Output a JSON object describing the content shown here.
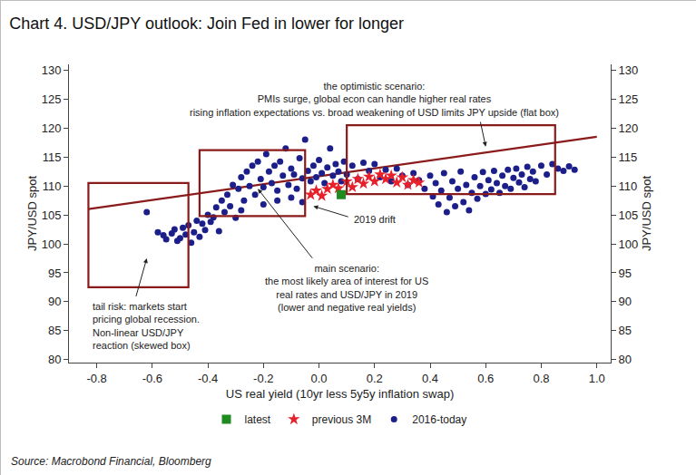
{
  "chart_data": {
    "type": "scatter",
    "title": "Chart 4. USD/JPY outlook: Join Fed in lower for longer",
    "x_label": "US real yield (10yr less 5y5y inflation swap)",
    "y_label": "JPY/USD spot",
    "y2_label": "JPY/USD spot",
    "xlim": [
      -0.9,
      1.05
    ],
    "xticks": [
      -0.8,
      -0.6,
      -0.4,
      -0.2,
      {
        "value": 0,
        "label": "0.0"
      },
      0.2,
      0.4,
      0.6,
      0.8,
      {
        "value": 1,
        "label": "1.0"
      }
    ],
    "ylim": [
      79.5,
      131
    ],
    "yticks": [
      80,
      85,
      90,
      95,
      100,
      105,
      110,
      115,
      120,
      125,
      130
    ],
    "y2lim": [
      79.5,
      131
    ],
    "y2ticks": [
      80,
      85,
      90,
      95,
      100,
      105,
      110,
      115,
      120,
      125,
      130
    ],
    "grid": false,
    "legend": "bottom",
    "series": [
      {
        "name": "2016-today",
        "color": "#1c1f8a",
        "marker": "circle",
        "x": [
          -0.62,
          -0.58,
          -0.56,
          -0.55,
          -0.53,
          -0.52,
          -0.51,
          -0.5,
          -0.49,
          -0.48,
          -0.47,
          -0.46,
          -0.45,
          -0.44,
          -0.43,
          -0.42,
          -0.41,
          -0.4,
          -0.39,
          -0.38,
          -0.37,
          -0.36,
          -0.35,
          -0.34,
          -0.33,
          -0.32,
          -0.31,
          -0.3,
          -0.29,
          -0.28,
          -0.27,
          -0.26,
          -0.25,
          -0.24,
          -0.23,
          -0.22,
          -0.21,
          -0.2,
          -0.19,
          -0.18,
          -0.17,
          -0.16,
          -0.15,
          -0.14,
          -0.13,
          -0.12,
          -0.11,
          -0.1,
          -0.09,
          -0.08,
          -0.07,
          -0.06,
          -0.05,
          -0.04,
          -0.03,
          -0.02,
          -0.01,
          0,
          0.01,
          0.02,
          0.03,
          0.04,
          0.05,
          0.06,
          0.07,
          0.08,
          0.09,
          0.1,
          0.12,
          0.14,
          0.16,
          0.18,
          0.2,
          0.22,
          0.24,
          0.26,
          0.28,
          0.3,
          0.32,
          0.34,
          0.36,
          0.38,
          0.4,
          0.41,
          0.42,
          0.43,
          0.44,
          0.45,
          0.46,
          0.47,
          0.48,
          0.49,
          0.5,
          0.51,
          0.52,
          0.53,
          0.54,
          0.55,
          0.56,
          0.57,
          0.58,
          0.59,
          0.6,
          0.61,
          0.62,
          0.63,
          0.64,
          0.65,
          0.66,
          0.67,
          0.68,
          0.69,
          0.7,
          0.71,
          0.72,
          0.73,
          0.74,
          0.75,
          0.76,
          0.77,
          0.78,
          0.8,
          0.82,
          0.84,
          0.86,
          0.88,
          0.9,
          0.92,
          -0.28,
          -0.2,
          -0.15,
          -0.1,
          -0.06
        ],
        "values": [
          105.5,
          102,
          101.5,
          100.8,
          101.8,
          102.5,
          100.5,
          101,
          102.8,
          101.6,
          103.2,
          100.2,
          102,
          104,
          101.2,
          103.5,
          102.4,
          105,
          103.8,
          104.6,
          106.3,
          102.2,
          107.5,
          105.5,
          108.5,
          106.5,
          110.2,
          104.5,
          109.5,
          111.5,
          107.5,
          112.5,
          110,
          113.5,
          108.5,
          114.2,
          111.2,
          109.8,
          115.5,
          112.5,
          110.5,
          113.5,
          109.2,
          114.2,
          111.8,
          116.5,
          110.2,
          113,
          112,
          109.5,
          114.8,
          111.3,
          118,
          112.6,
          110.8,
          113.5,
          111.5,
          114.5,
          112.2,
          110.5,
          113.2,
          116.5,
          111.8,
          113.8,
          112.5,
          110.8,
          114.2,
          112,
          113.5,
          111.2,
          114,
          112.6,
          113.8,
          111.5,
          112.8,
          110.8,
          113,
          111.8,
          110.2,
          112.2,
          111,
          109.5,
          111.8,
          108.2,
          110.5,
          106.8,
          109.2,
          112.2,
          105.5,
          108,
          110.8,
          106.5,
          109.5,
          112.5,
          107.2,
          110.2,
          105.8,
          108.8,
          111.5,
          107.8,
          110,
          112.4,
          108.6,
          111,
          109.4,
          112.6,
          110.5,
          108.8,
          111.8,
          110,
          112.8,
          109.5,
          111.4,
          113,
          110.6,
          112,
          109.8,
          113.3,
          111.2,
          112.5,
          110.8,
          113.5,
          112,
          113.8,
          113,
          112.6,
          113.4,
          112.8,
          105.8,
          106.8,
          107.5,
          108,
          107.2
        ]
      },
      {
        "name": "previous 3M",
        "color": "#e8202a",
        "marker": "star",
        "x": [
          -0.03,
          -0.01,
          0.01,
          0.03,
          0.05,
          0.07,
          0.1,
          0.12,
          0.14,
          0.16,
          0.18,
          0.2,
          0.22,
          0.24,
          0.26,
          0.28,
          0.3,
          0.32,
          0.34,
          0.36
        ],
        "values": [
          108.5,
          109.2,
          108.3,
          109.5,
          110.2,
          109.6,
          110.8,
          109.8,
          111.2,
          110.4,
          111.6,
          110.8,
          112,
          111.2,
          111.8,
          110.6,
          111.5,
          110.2,
          111,
          110.6
        ]
      },
      {
        "name": "latest",
        "color": "#1e8c1e",
        "marker": "square",
        "x": [
          0.08
        ],
        "values": [
          108.5
        ]
      }
    ],
    "boxes": [
      {
        "x": [
          -0.83,
          -0.47
        ],
        "y": [
          92.5,
          110.5
        ]
      },
      {
        "x": [
          -0.43,
          -0.05
        ],
        "y": [
          104.8,
          116.2
        ]
      },
      {
        "x": [
          0.1,
          0.85
        ],
        "y": [
          108.6,
          120.5
        ]
      }
    ],
    "box_color": "#8b1a1a",
    "trend_line": {
      "x": [
        -0.83,
        1.0
      ],
      "values": [
        106,
        118.5
      ],
      "color": "#8b1a1a"
    },
    "annotations": [
      "the optimistic scenario:\nPMIs surge, global econ can handle higher real rates\nrising inflation expectations vs. broad weakening of USD limits JPY upside (flat box)",
      "2019 drift",
      "main scenario:\nthe most likely area of interest for US\nreal rates and USD/JPY in 2019\n(lower and negative real yields)",
      "tail risk: markets start\npricing global recession.\nNon-linear USD/JPY\nreaction (skewed box)"
    ],
    "source": "Source: Macrobond Financial, Bloomberg"
  }
}
